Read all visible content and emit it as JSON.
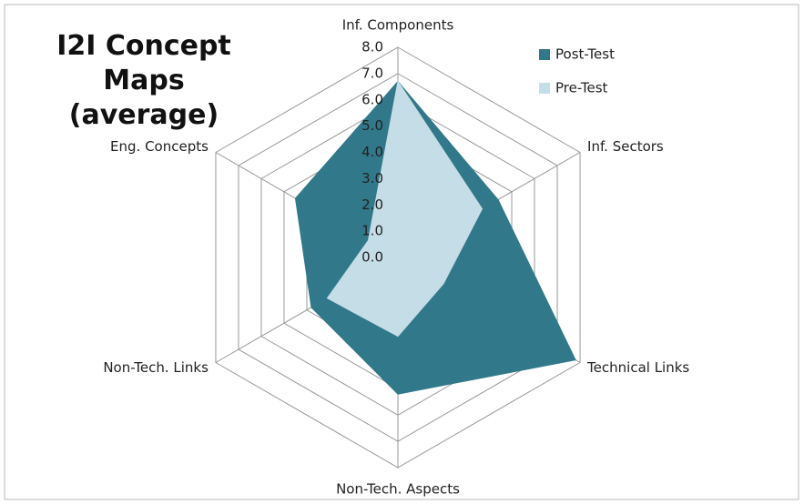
{
  "chart_data": {
    "type": "radar",
    "title": "I2I Concept Maps (average)",
    "categories": [
      "Inf. Components",
      "Inf. Sectors",
      "Technical Links",
      "Non-Tech. Aspects",
      "Non-Tech. Links",
      "Eng. Concepts"
    ],
    "series": [
      {
        "name": "Post-Test",
        "color": "#31788a",
        "values": [
          6.7,
          4.4,
          7.8,
          5.2,
          3.8,
          4.5
        ]
      },
      {
        "name": "Pre-Test",
        "color": "#c5dde6",
        "values": [
          6.7,
          3.7,
          2.0,
          3.0,
          3.1,
          1.3
        ]
      }
    ],
    "ylim": [
      0,
      8
    ],
    "yticks": [
      {
        "value": 0,
        "label": "0.0"
      },
      {
        "value": 1,
        "label": "1.0"
      },
      {
        "value": 2,
        "label": "2.0"
      },
      {
        "value": 3,
        "label": "3.0"
      },
      {
        "value": 4,
        "label": "4.0"
      },
      {
        "value": 5,
        "label": "5.0"
      },
      {
        "value": 6,
        "label": "6.0"
      },
      {
        "value": 7,
        "label": "7.0"
      },
      {
        "value": 8,
        "label": "8.0"
      }
    ],
    "grid": true,
    "legend": "top-right"
  }
}
